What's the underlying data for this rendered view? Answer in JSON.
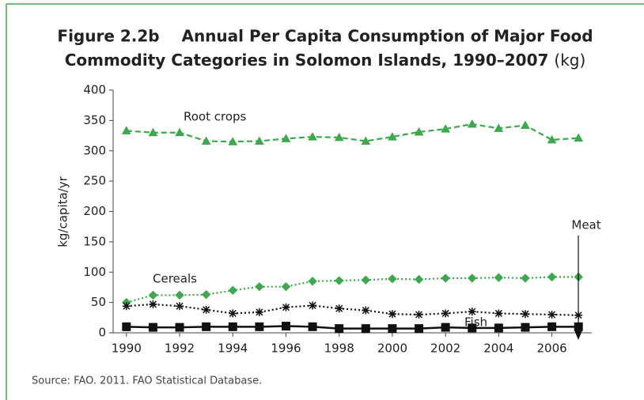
{
  "chart_data": {
    "type": "line",
    "title": [
      "Figure 2.2b    Annual Per Capita Consumption of Major Food",
      "Commodity Categories in Solomon Islands, 1990–2007"
    ],
    "title_unit": "(kg)",
    "y_label": "kg/capita/yr",
    "source": "Source: FAO. 2011. FAO Statistical Database.",
    "x": [
      1990,
      1991,
      1992,
      1993,
      1994,
      1995,
      1996,
      1997,
      1998,
      1999,
      2000,
      2001,
      2002,
      2003,
      2004,
      2005,
      2006,
      2007
    ],
    "xlim": [
      1989.5,
      2007.5
    ],
    "xticks": [
      1990,
      1992,
      1994,
      1996,
      1998,
      2000,
      2002,
      2004,
      2006
    ],
    "ylim": [
      0,
      400
    ],
    "yticks": [
      0,
      50,
      100,
      150,
      200,
      250,
      300,
      350,
      400
    ],
    "series": [
      {
        "name": "Root crops",
        "color": "#3aaa4a",
        "marker": "triangle",
        "dash": "dashed",
        "values": [
          333,
          330,
          330,
          316,
          315,
          316,
          320,
          323,
          322,
          316,
          323,
          331,
          336,
          344,
          337,
          342,
          318,
          321
        ]
      },
      {
        "name": "Cereals",
        "color": "#3aaa4a",
        "marker": "diamond",
        "dash": "dotted",
        "values": [
          50,
          62,
          62,
          63,
          70,
          76,
          76,
          85,
          86,
          87,
          89,
          88,
          90,
          90,
          91,
          90,
          92,
          92
        ]
      },
      {
        "name": "Fish",
        "color": "#111111",
        "marker": "asterisk",
        "dash": "dotted",
        "values": [
          44,
          47,
          44,
          38,
          32,
          34,
          42,
          45,
          40,
          37,
          31,
          30,
          32,
          35,
          32,
          31,
          30,
          29
        ]
      },
      {
        "name": "Meat",
        "color": "#111111",
        "marker": "square",
        "dash": "solid",
        "values": [
          10,
          9,
          9,
          10,
          10,
          10,
          11,
          10,
          7,
          7,
          7,
          7,
          9,
          8,
          8,
          9,
          10,
          10
        ]
      }
    ]
  }
}
